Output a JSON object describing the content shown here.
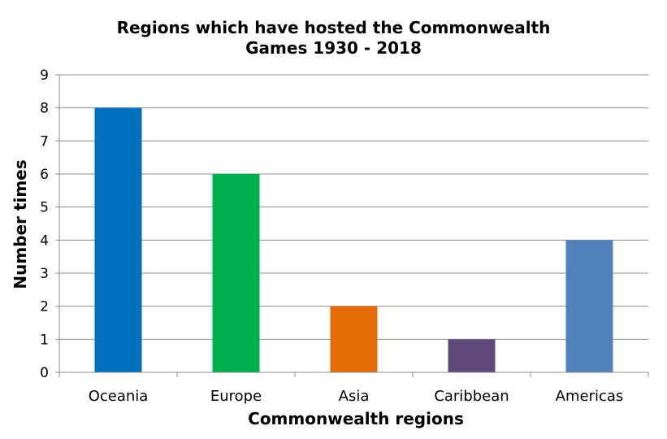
{
  "chart_data": {
    "type": "bar",
    "title_lines": [
      "Regions which have hosted the Commonwealth",
      "Games 1930 - 2018"
    ],
    "xlabel": "Commonwealth regions",
    "ylabel": "Number times",
    "categories": [
      "Oceania",
      "Europe",
      "Asia",
      "Caribbean",
      "Americas"
    ],
    "values": [
      8,
      6,
      2,
      1,
      4
    ],
    "bar_colors": [
      "#0070C0",
      "#00B050",
      "#E36C09",
      "#604A7B",
      "#4F81BD"
    ],
    "ylim": [
      0,
      9
    ],
    "yticks": [
      0,
      1,
      2,
      3,
      4,
      5,
      6,
      7,
      8,
      9
    ],
    "grid": true,
    "legend": "none"
  }
}
